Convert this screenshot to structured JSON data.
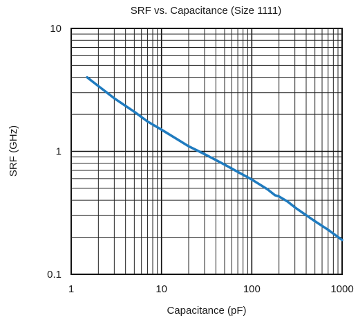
{
  "chart_data": {
    "type": "line",
    "title": "SRF vs. Capacitance (Size 1111)",
    "xlabel": "Capacitance (pF)",
    "ylabel": "SRF (GHz)",
    "x_scale": "log",
    "y_scale": "log",
    "xlim": [
      1,
      1000
    ],
    "ylim": [
      0.1,
      10
    ],
    "x_ticks": [
      1,
      10,
      100,
      1000
    ],
    "x_tick_labels": [
      "1",
      "10",
      "100",
      "1000"
    ],
    "y_ticks": [
      0.1,
      1,
      10
    ],
    "y_tick_labels": [
      "0.1",
      "1",
      "10"
    ],
    "grid": true,
    "line_color": "#1f7bbf",
    "series": [
      {
        "x": [
          1.5,
          2,
          3,
          5,
          7,
          10,
          20,
          30,
          50,
          70,
          100,
          150,
          180,
          200,
          250,
          300,
          500,
          700,
          1000
        ],
        "y": [
          4.0,
          3.4,
          2.7,
          2.1,
          1.75,
          1.5,
          1.1,
          0.95,
          0.78,
          0.68,
          0.59,
          0.49,
          0.44,
          0.43,
          0.39,
          0.35,
          0.27,
          0.23,
          0.19
        ]
      }
    ]
  }
}
